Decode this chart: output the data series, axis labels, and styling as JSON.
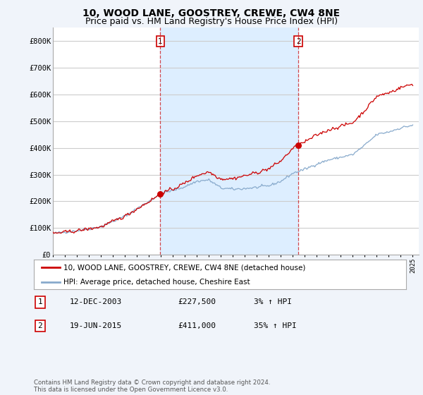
{
  "title": "10, WOOD LANE, GOOSTREY, CREWE, CW4 8NE",
  "subtitle": "Price paid vs. HM Land Registry's House Price Index (HPI)",
  "ylim": [
    0,
    850000
  ],
  "yticks": [
    0,
    100000,
    200000,
    300000,
    400000,
    500000,
    600000,
    700000,
    800000
  ],
  "ytick_labels": [
    "£0",
    "£100K",
    "£200K",
    "£300K",
    "£400K",
    "£500K",
    "£600K",
    "£700K",
    "£800K"
  ],
  "fig_bg_color": "#f0f4fa",
  "plot_bg_color": "#ffffff",
  "shaded_bg_color": "#ddeeff",
  "grid_color": "#cccccc",
  "line_color_red": "#cc0000",
  "line_color_blue": "#88aacc",
  "transaction1_x": 2003.958,
  "transaction1_price": 227500,
  "transaction2_x": 2015.458,
  "transaction2_price": 411000,
  "legend_label_red": "10, WOOD LANE, GOOSTREY, CREWE, CW4 8NE (detached house)",
  "legend_label_blue": "HPI: Average price, detached house, Cheshire East",
  "table_row1": [
    "1",
    "12-DEC-2003",
    "£227,500",
    "3% ↑ HPI"
  ],
  "table_row2": [
    "2",
    "19-JUN-2015",
    "£411,000",
    "35% ↑ HPI"
  ],
  "footer": "Contains HM Land Registry data © Crown copyright and database right 2024.\nThis data is licensed under the Open Government Licence v3.0.",
  "title_fontsize": 10,
  "subtitle_fontsize": 9,
  "tick_fontsize": 7.5
}
